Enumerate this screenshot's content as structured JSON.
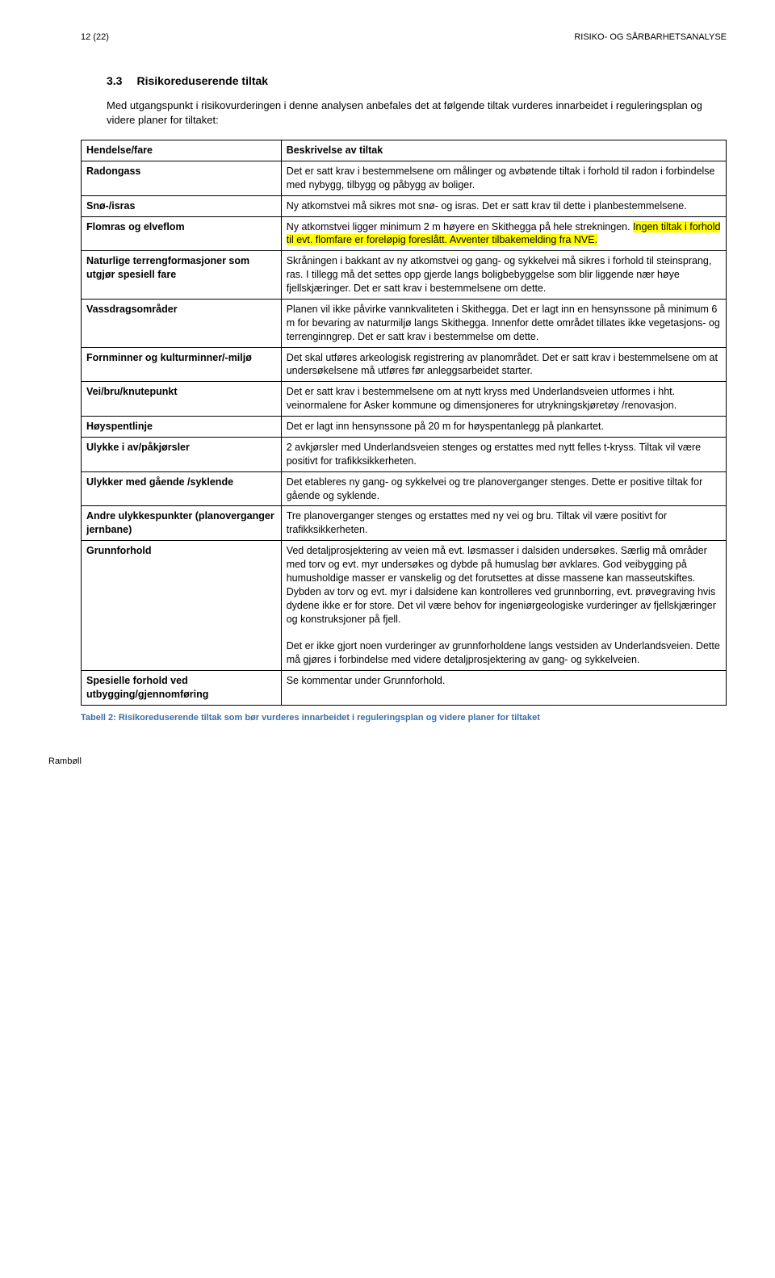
{
  "header": {
    "page_num": "12 (22)",
    "doc_title": "RISIKO- OG SÅRBARHETSANALYSE"
  },
  "section": {
    "number": "3.3",
    "title": "Risikoreduserende tiltak"
  },
  "intro": "Med utgangspunkt i risikovurderingen i denne analysen anbefales det at følgende tiltak vurderes innarbeidet i reguleringsplan og videre planer for tiltaket:",
  "table": {
    "header_left": "Hendelse/fare",
    "header_right": "Beskrivelse av tiltak",
    "rows": [
      {
        "left": "Radongass",
        "right_parts": [
          {
            "text": "Det er satt krav i bestemmelsene om målinger og avbøtende tiltak i forhold til radon i forbindelse med nybygg, tilbygg og påbygg av boliger.",
            "hl": false
          }
        ]
      },
      {
        "left": "Snø-/isras",
        "right_parts": [
          {
            "text": "Ny atkomstvei må sikres mot snø- og isras. Det er satt krav til dette i planbestemmelsene.",
            "hl": false
          }
        ]
      },
      {
        "left": "Flomras og elveflom",
        "right_parts": [
          {
            "text": "Ny atkomstvei ligger minimum 2 m høyere en Skithegga på hele strekningen. ",
            "hl": false
          },
          {
            "text": "Ingen tiltak i forhold til evt. flomfare er foreløpig foreslått. Avventer tilbakemelding fra NVE.",
            "hl": true
          }
        ]
      },
      {
        "left": "Naturlige terrengformasjoner som utgjør spesiell fare",
        "right_parts": [
          {
            "text": "Skråningen i bakkant av ny atkomstvei og gang- og sykkelvei må sikres i forhold til steinsprang, ras. I tillegg må det settes opp gjerde langs boligbebyggelse som blir liggende nær høye fjellskjæringer. Det er satt krav i bestemmelsene om dette.",
            "hl": false
          }
        ]
      },
      {
        "left": "Vassdragsområder",
        "right_parts": [
          {
            "text": "Planen vil ikke påvirke vannkvaliteten i Skithegga. Det er lagt inn en hensynssone på minimum 6 m for bevaring av naturmiljø langs Skithegga. Innenfor dette området tillates ikke vegetasjons- og terrenginngrep. Det er satt krav i bestemmelse om dette.",
            "hl": false
          }
        ]
      },
      {
        "left": "Fornminner og kulturminner/-miljø",
        "right_parts": [
          {
            "text": "Det skal utføres arkeologisk registrering av planområdet. Det er satt krav i bestemmelsene om at undersøkelsene må utføres før anleggsarbeidet starter.",
            "hl": false
          }
        ]
      },
      {
        "left": "Vei/bru/knutepunkt",
        "right_parts": [
          {
            "text": "Det er satt krav i bestemmelsene om at nytt kryss med Underlandsveien utformes i hht. veinormalene for Asker kommune og dimensjoneres for utrykningskjøretøy /renovasjon.",
            "hl": false
          }
        ]
      },
      {
        "left": "Høyspentlinje",
        "right_parts": [
          {
            "text": "Det er lagt inn hensynssone på 20 m for høyspentanlegg på plankartet.",
            "hl": false
          }
        ]
      },
      {
        "left": "Ulykke i av/påkjørsler",
        "right_parts": [
          {
            "text": "2 avkjørsler med Underlandsveien stenges og erstattes med nytt felles t-kryss. Tiltak vil være positivt for trafikksikkerheten.",
            "hl": false
          }
        ]
      },
      {
        "left": "Ulykker med gående /syklende",
        "right_parts": [
          {
            "text": "Det etableres ny gang- og sykkelvei og tre planoverganger stenges. Dette er positive tiltak for gående og syklende.",
            "hl": false
          }
        ]
      },
      {
        "left": "Andre ulykkespunkter (planoverganger jernbane)",
        "right_parts": [
          {
            "text": "Tre planoverganger stenges og erstattes med ny vei og bru. Tiltak vil være positivt for trafikksikkerheten.",
            "hl": false
          }
        ]
      },
      {
        "left": "Grunnforhold",
        "right_parts": [
          {
            "text": "Ved detaljprosjektering av veien må evt. løsmasser i dalsiden undersøkes. Særlig må områder med torv og evt. myr undersøkes og dybde på humuslag bør avklares. God veibygging på humusholdige masser er vanskelig og det forutsettes at disse massene kan masseutskiftes. Dybden av torv og evt. myr i dalsidene kan kontrolleres ved grunnborring, evt. prøvegraving hvis dydene ikke er for store. Det vil være behov for ingeniørgeologiske vurderinger av fjellskjæringer og konstruksjoner på fjell.",
            "hl": false
          }
        ],
        "extra_paragraph": "Det er ikke gjort noen vurderinger av grunnforholdene langs vestsiden av Underlandsveien. Dette må gjøres i forbindelse med videre detaljprosjektering av gang- og sykkelveien."
      },
      {
        "left": "Spesielle forhold ved utbygging/gjennomføring",
        "right_parts": [
          {
            "text": "Se kommentar under Grunnforhold.",
            "hl": false
          }
        ]
      }
    ]
  },
  "caption": "Tabell 2: Risikoreduserende tiltak som bør vurderes innarbeidet i reguleringsplan og videre planer for tiltaket",
  "footer": "Rambøll",
  "colors": {
    "caption": "#3a6ea8",
    "highlight": "#ffff00",
    "border": "#000000"
  }
}
